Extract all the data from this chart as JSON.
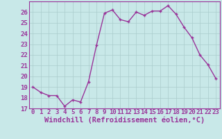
{
  "x": [
    0,
    1,
    2,
    3,
    4,
    5,
    6,
    7,
    8,
    9,
    10,
    11,
    12,
    13,
    14,
    15,
    16,
    17,
    18,
    19,
    20,
    21,
    22,
    23
  ],
  "y": [
    19.0,
    18.5,
    18.2,
    18.2,
    17.2,
    17.8,
    17.6,
    19.5,
    22.9,
    25.9,
    26.2,
    25.3,
    25.1,
    26.0,
    25.7,
    26.1,
    26.1,
    26.6,
    25.8,
    24.6,
    23.6,
    22.0,
    21.1,
    19.8
  ],
  "line_color": "#993399",
  "marker": "+",
  "marker_color": "#993399",
  "bg_color": "#c8e8e8",
  "grid_color": "#aacccc",
  "xlabel": "Windchill (Refroidissement éolien,°C)",
  "ylim": [
    17,
    27
  ],
  "xlim": [
    -0.5,
    23.5
  ],
  "yticks": [
    17,
    18,
    19,
    20,
    21,
    22,
    23,
    24,
    25,
    26
  ],
  "xticks": [
    0,
    1,
    2,
    3,
    4,
    5,
    6,
    7,
    8,
    9,
    10,
    11,
    12,
    13,
    14,
    15,
    16,
    17,
    18,
    19,
    20,
    21,
    22,
    23
  ],
  "tick_fontsize": 6.5,
  "xlabel_fontsize": 7.5,
  "label_color": "#993399",
  "line_width": 1.0,
  "marker_size": 3
}
